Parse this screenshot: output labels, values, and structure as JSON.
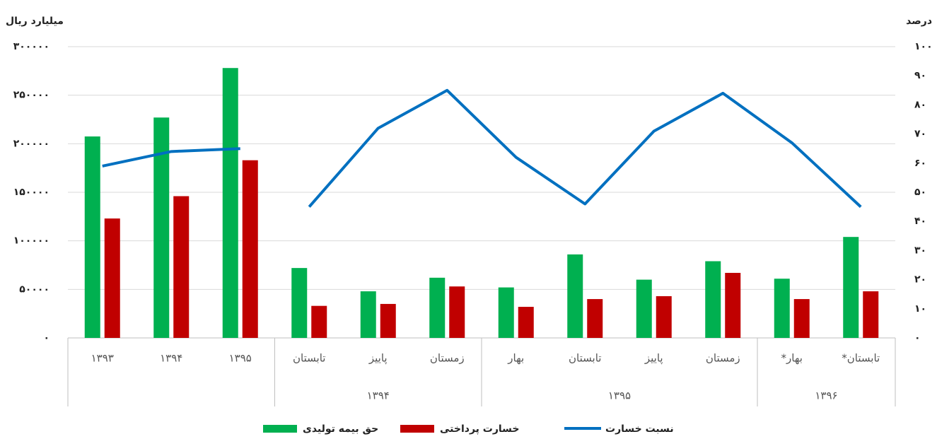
{
  "chart_data": {
    "type": "bar-line",
    "y_title": "میلیارد ریال",
    "y2_title": "درصد",
    "category_groups": [
      {
        "label": null,
        "categories": [
          "۱۳۹۳",
          "۱۳۹۴",
          "۱۳۹۵"
        ]
      },
      {
        "label": "۱۳۹۴",
        "categories": [
          "تابستان",
          "پاییز",
          "زمستان"
        ]
      },
      {
        "label": "۱۳۹۵",
        "categories": [
          "بهار",
          "تابستان",
          "پاییز",
          "زمستان"
        ]
      },
      {
        "label": "۱۳۹۶",
        "categories": [
          "*بهار",
          "*تابستان"
        ]
      }
    ],
    "series": [
      {
        "name": "حق بیمه تولیدی",
        "color": "#00b050",
        "kind": "bar",
        "values": [
          207500,
          227000,
          278000,
          72000,
          48000,
          62000,
          52000,
          86000,
          60000,
          79000,
          61000,
          104000
        ]
      },
      {
        "name": "خسارت پرداختی",
        "color": "#c00000",
        "kind": "bar",
        "values": [
          123000,
          146000,
          183000,
          33000,
          35000,
          53000,
          32000,
          40000,
          43000,
          67000,
          40000,
          48000
        ]
      },
      {
        "name": "نسبت خسارت",
        "color": "#0070c0",
        "kind": "line",
        "axis": "y2",
        "break_after": [
          2
        ],
        "values": [
          59,
          64,
          65,
          45,
          72,
          85,
          62,
          46,
          71,
          84,
          67,
          45
        ]
      }
    ],
    "ylim": [
      0,
      300000
    ],
    "yticks": [
      {
        "value": 0,
        "label": "۰"
      },
      {
        "value": 50000,
        "label": "۵۰۰۰۰"
      },
      {
        "value": 100000,
        "label": "۱۰۰۰۰۰"
      },
      {
        "value": 150000,
        "label": "۱۵۰۰۰۰"
      },
      {
        "value": 200000,
        "label": "۲۰۰۰۰۰"
      },
      {
        "value": 250000,
        "label": "۲۵۰۰۰۰"
      },
      {
        "value": 300000,
        "label": "۳۰۰۰۰۰"
      }
    ],
    "y2lim": [
      0,
      100
    ],
    "y2ticks": [
      {
        "value": 0,
        "label": "۰"
      },
      {
        "value": 10,
        "label": "۱۰"
      },
      {
        "value": 20,
        "label": "۲۰"
      },
      {
        "value": 30,
        "label": "۳۰"
      },
      {
        "value": 40,
        "label": "۴۰"
      },
      {
        "value": 50,
        "label": "۵۰"
      },
      {
        "value": 60,
        "label": "۶۰"
      },
      {
        "value": 70,
        "label": "۷۰"
      },
      {
        "value": 80,
        "label": "۸۰"
      },
      {
        "value": 90,
        "label": "۹۰"
      },
      {
        "value": 100,
        "label": "۱۰۰"
      }
    ],
    "grid": true,
    "legend": "bottom"
  }
}
